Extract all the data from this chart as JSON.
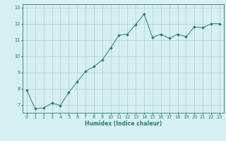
{
  "x": [
    0,
    1,
    2,
    3,
    4,
    5,
    6,
    7,
    8,
    9,
    10,
    11,
    12,
    13,
    14,
    15,
    16,
    17,
    18,
    19,
    20,
    21,
    22,
    23
  ],
  "y": [
    7.9,
    6.75,
    6.8,
    7.1,
    6.95,
    7.75,
    8.4,
    9.05,
    9.35,
    9.75,
    10.5,
    11.3,
    11.35,
    11.95,
    12.6,
    11.15,
    11.35,
    11.1,
    11.35,
    11.2,
    11.8,
    11.75,
    12.0,
    12.0
  ],
  "line_color": "#2e7d6e",
  "marker": "D",
  "marker_size": 2.0,
  "bg_color": "#d6efef",
  "grid_color": "#b0cfcf",
  "xlabel": "Humidex (Indice chaleur)",
  "xlabel_fontsize": 5.5,
  "xlabel_color": "#2e7d6e",
  "yticks": [
    7,
    8,
    9,
    10,
    11,
    12,
    13
  ],
  "xticks": [
    0,
    1,
    2,
    3,
    4,
    5,
    6,
    7,
    8,
    9,
    10,
    11,
    12,
    13,
    14,
    15,
    16,
    17,
    18,
    19,
    20,
    21,
    22,
    23
  ],
  "tick_fontsize": 4.8,
  "tick_color": "#2e7d6e",
  "ylim": [
    6.5,
    13.2
  ],
  "xlim": [
    -0.5,
    23.5
  ],
  "spine_color": "#2e7d6e"
}
